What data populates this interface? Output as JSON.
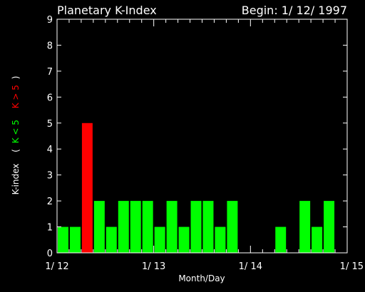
{
  "header": {
    "title": "Planetary K-Index",
    "begin": "Begin: 1/ 12/ 1997"
  },
  "chart_data": {
    "type": "bar",
    "title": "Planetary K-Index",
    "xlabel": "Month/Day",
    "ylabel": {
      "prefix": "K-index",
      "open": "(",
      "green_part": "K < 5",
      "red_part": "K > 5",
      "close": ")"
    },
    "ylim": [
      0,
      9
    ],
    "yticks": [
      "0",
      "1",
      "2",
      "3",
      "4",
      "5",
      "6",
      "7",
      "8",
      "9"
    ],
    "xlim": [
      0,
      24
    ],
    "xticks": [
      {
        "label": "1/ 12",
        "x": 0
      },
      {
        "label": "1/ 13",
        "x": 8
      },
      {
        "label": "1/ 14",
        "x": 16
      },
      {
        "label": "1/ 15",
        "x": 24
      }
    ],
    "bin_hours": 3,
    "values": [
      1,
      1,
      5,
      2,
      1,
      2,
      2,
      2,
      1,
      2,
      1,
      2,
      2,
      1,
      2,
      0,
      0,
      0,
      1,
      0,
      2,
      1,
      2,
      0
    ],
    "threshold": 5,
    "colors": {
      "low": "#00ff00",
      "high": "#ff0000",
      "axis": "#ffffff",
      "background": "#000000"
    }
  }
}
